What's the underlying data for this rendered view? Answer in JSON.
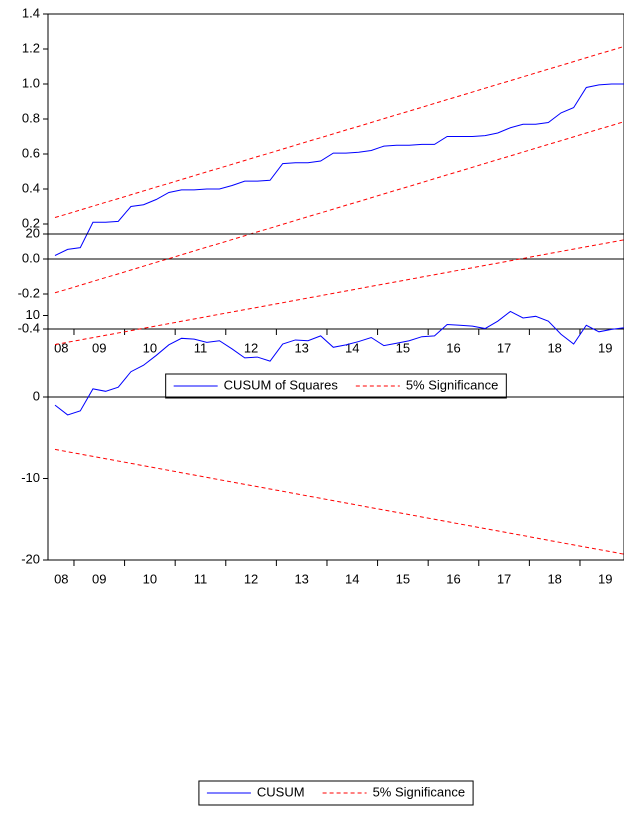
{
  "chart_data": [
    {
      "type": "line",
      "categories": [
        "08",
        null,
        "09",
        null,
        null,
        null,
        "10",
        null,
        null,
        null,
        "11",
        null,
        null,
        null,
        "12",
        null,
        null,
        null,
        "13",
        null,
        null,
        null,
        "14",
        null,
        null,
        null,
        "15",
        null,
        null,
        null,
        "16",
        null,
        null,
        null,
        "17",
        null,
        null,
        null,
        "18",
        null,
        null,
        null,
        "19",
        null,
        null,
        null
      ],
      "ylim": [
        -0.4,
        1.4
      ],
      "yticks": [
        -0.4,
        -0.2,
        {
          "value": 0,
          "label": "0.0"
        },
        0.2,
        0.4,
        0.6,
        0.8,
        {
          "value": 1,
          "label": "1.0"
        },
        1.2,
        1.4
      ],
      "zero_line": true,
      "series": [
        {
          "name": "CUSUM of Squares",
          "color": "#0000ff",
          "style": "solid",
          "values": [
            0.02,
            0.055,
            0.065,
            0.21,
            0.21,
            0.215,
            0.3,
            0.31,
            0.34,
            0.38,
            0.395,
            0.395,
            0.4,
            0.4,
            0.42,
            0.445,
            0.445,
            0.45,
            0.545,
            0.55,
            0.55,
            0.56,
            0.605,
            0.605,
            0.61,
            0.62,
            0.645,
            0.65,
            0.65,
            0.655,
            0.655,
            0.7,
            0.7,
            0.7,
            0.705,
            0.72,
            0.75,
            0.77,
            0.77,
            0.78,
            0.835,
            0.865,
            0.98,
            0.995,
            1.0,
            1.0
          ]
        },
        {
          "name": "5% Significance",
          "color": "#ff0000",
          "style": "dashed",
          "values": [
            0.237,
            0.258,
            0.28,
            0.302,
            0.324,
            0.345,
            0.367,
            0.389,
            0.411,
            0.432,
            0.454,
            0.476,
            0.498,
            0.519,
            0.541,
            0.563,
            0.585,
            0.606,
            0.628,
            0.65,
            0.672,
            0.693,
            0.715,
            0.737,
            0.758,
            0.78,
            0.802,
            0.824,
            0.845,
            0.867,
            0.889,
            0.911,
            0.932,
            0.954,
            0.976,
            0.998,
            1.019,
            1.041,
            1.063,
            1.085,
            1.106,
            1.128,
            1.15,
            1.172,
            1.193,
            1.215
          ],
          "lower": [
            -0.193,
            -0.172,
            -0.15,
            -0.128,
            -0.106,
            -0.085,
            -0.063,
            -0.041,
            -0.019,
            0.002,
            0.024,
            0.046,
            0.068,
            0.089,
            0.111,
            0.133,
            0.155,
            0.176,
            0.198,
            0.22,
            0.242,
            0.263,
            0.285,
            0.307,
            0.328,
            0.35,
            0.372,
            0.394,
            0.415,
            0.437,
            0.459,
            0.481,
            0.502,
            0.524,
            0.546,
            0.568,
            0.589,
            0.611,
            0.633,
            0.655,
            0.676,
            0.698,
            0.72,
            0.742,
            0.763,
            0.785
          ]
        }
      ]
    },
    {
      "type": "line",
      "categories": [
        "08",
        null,
        "09",
        null,
        null,
        null,
        "10",
        null,
        null,
        null,
        "11",
        null,
        null,
        null,
        "12",
        null,
        null,
        null,
        "13",
        null,
        null,
        null,
        "14",
        null,
        null,
        null,
        "15",
        null,
        null,
        null,
        "16",
        null,
        null,
        null,
        "17",
        null,
        null,
        null,
        "18",
        null,
        null,
        null,
        "19",
        null,
        null,
        null
      ],
      "ylim": [
        -20,
        20
      ],
      "yticks": [
        -20,
        -10,
        0,
        10,
        20
      ],
      "zero_line": true,
      "series": [
        {
          "name": "CUSUM",
          "color": "#0000ff",
          "style": "solid",
          "values": [
            -1.0,
            -2.2,
            -1.7,
            1.0,
            0.7,
            1.2,
            3.1,
            3.9,
            5.1,
            6.4,
            7.2,
            7.1,
            6.7,
            6.9,
            5.9,
            4.8,
            4.9,
            4.4,
            6.5,
            7.0,
            6.9,
            7.5,
            6.1,
            6.4,
            6.8,
            7.3,
            6.3,
            6.6,
            6.9,
            7.4,
            7.5,
            8.9,
            8.8,
            8.7,
            8.4,
            9.3,
            10.5,
            9.7,
            9.9,
            9.3,
            7.7,
            6.5,
            8.8,
            8.0,
            8.3,
            8.5
          ]
        },
        {
          "name": "5% Significance",
          "color": "#ff0000",
          "style": "dashed",
          "values": [
            6.43,
            6.72,
            7.0,
            7.29,
            7.57,
            7.86,
            8.14,
            8.43,
            8.72,
            9.0,
            9.29,
            9.57,
            9.86,
            10.15,
            10.43,
            10.72,
            11.0,
            11.29,
            11.57,
            11.86,
            12.15,
            12.43,
            12.72,
            13.0,
            13.29,
            13.58,
            13.86,
            14.15,
            14.43,
            14.72,
            15.0,
            15.29,
            15.58,
            15.86,
            16.15,
            16.43,
            16.72,
            17.0,
            17.29,
            17.58,
            17.86,
            18.15,
            18.43,
            18.72,
            19.0,
            19.29
          ],
          "lower": [
            -6.43,
            -6.72,
            -7.0,
            -7.29,
            -7.57,
            -7.86,
            -8.14,
            -8.43,
            -8.72,
            -9.0,
            -9.29,
            -9.57,
            -9.86,
            -10.15,
            -10.43,
            -10.72,
            -11.0,
            -11.29,
            -11.57,
            -11.86,
            -12.15,
            -12.43,
            -12.72,
            -13.0,
            -13.29,
            -13.58,
            -13.86,
            -14.15,
            -14.43,
            -14.72,
            -15.0,
            -15.29,
            -15.58,
            -15.86,
            -16.15,
            -16.43,
            -16.72,
            -17.0,
            -17.29,
            -17.58,
            -17.86,
            -18.15,
            -18.43,
            -18.72,
            -19.0,
            -19.29
          ]
        }
      ]
    }
  ]
}
